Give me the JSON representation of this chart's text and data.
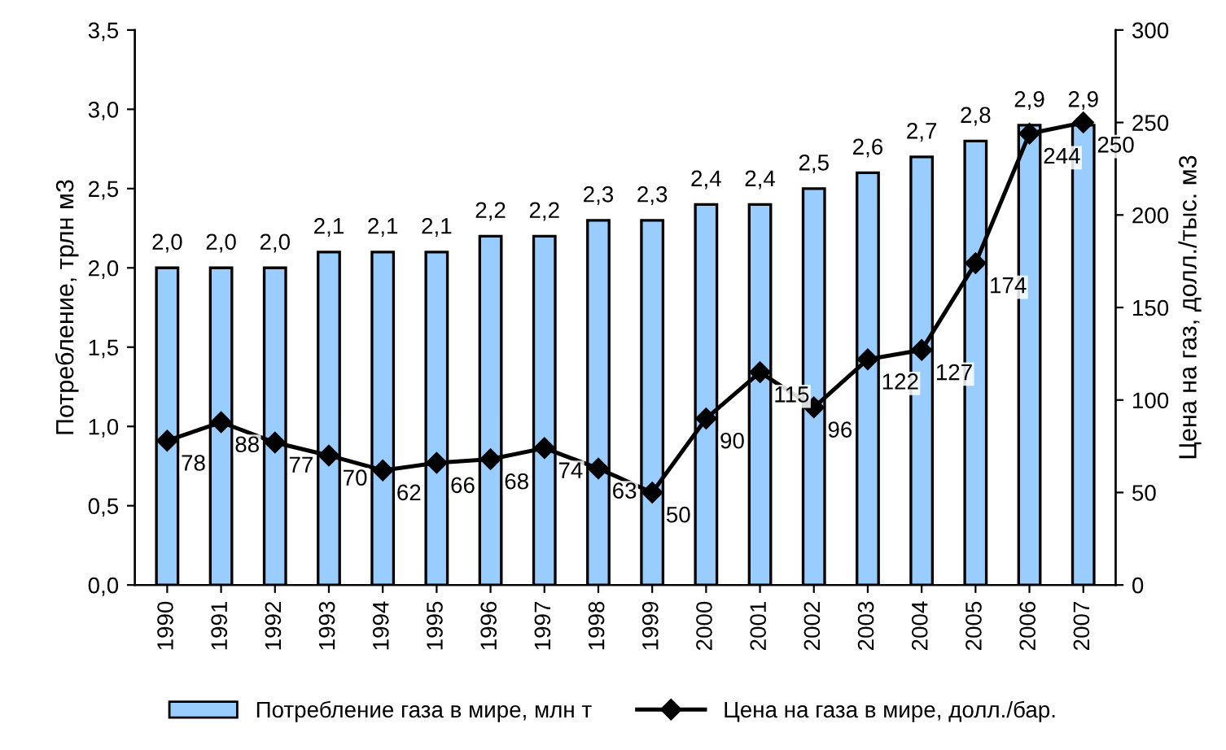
{
  "chart_data": {
    "type": "bar",
    "xlabel": null,
    "ylabel": "Потребление, трлн м3",
    "y2label": "Цена на газ, долл./тыс. м3",
    "categories": [
      "1990",
      "1991",
      "1992",
      "1993",
      "1994",
      "1995",
      "1996",
      "1997",
      "1998",
      "1999",
      "2000",
      "2001",
      "2002",
      "2003",
      "2004",
      "2005",
      "2006",
      "2007"
    ],
    "series": [
      {
        "name": "Потребление газа в мире, млн т",
        "color": "#99ccff",
        "values": [
          2.0,
          2.0,
          2.0,
          2.1,
          2.1,
          2.1,
          2.2,
          2.2,
          2.3,
          2.3,
          2.4,
          2.4,
          2.5,
          2.6,
          2.7,
          2.8,
          2.9,
          2.9
        ],
        "value_labels": [
          "2,0",
          "2,0",
          "2,0",
          "2,1",
          "2,1",
          "2,1",
          "2,2",
          "2,2",
          "2,3",
          "2,3",
          "2,4",
          "2,4",
          "2,5",
          "2,6",
          "2,7",
          "2,8",
          "2,9",
          "2,9"
        ]
      },
      {
        "name": "Цена на газа в мире, долл./бар.",
        "type": "line",
        "axis": "y2",
        "color": "#000000",
        "marker": "diamond",
        "values": [
          78,
          88,
          77,
          70,
          62,
          66,
          68,
          74,
          63,
          50,
          90,
          115,
          96,
          122,
          127,
          174,
          244,
          250
        ],
        "value_labels": [
          "78",
          "88",
          "77",
          "70",
          "62",
          "66",
          "68",
          "74",
          "63",
          "50",
          "90",
          "115",
          "96",
          "122",
          "127",
          "174",
          "244",
          "250"
        ]
      }
    ],
    "ylim": [
      0,
      3.5
    ],
    "yticks": [
      {
        "value": 0,
        "label": "0,0"
      },
      {
        "value": 0.5,
        "label": "0,5"
      },
      {
        "value": 1.0,
        "label": "1,0"
      },
      {
        "value": 1.5,
        "label": "1,5"
      },
      {
        "value": 2.0,
        "label": "2,0"
      },
      {
        "value": 2.5,
        "label": "2,5"
      },
      {
        "value": 3.0,
        "label": "3,0"
      },
      {
        "value": 3.5,
        "label": "3,5"
      }
    ],
    "y2lim": [
      0,
      300
    ],
    "y2ticks": [
      0,
      50,
      100,
      150,
      200,
      250,
      300
    ],
    "grid": false,
    "legend": "bottom"
  }
}
